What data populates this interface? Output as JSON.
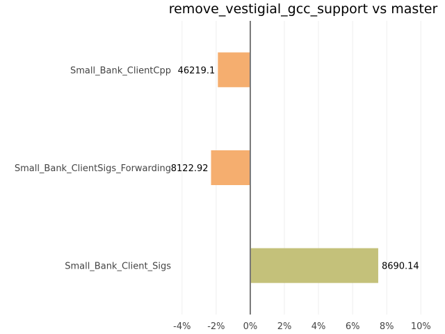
{
  "chart_data": {
    "type": "bar",
    "orientation": "horizontal",
    "title": "remove_vestigial_gcc_support vs master",
    "xlabel": "",
    "ylabel": "",
    "categories": [
      "Small_Bank_ClientCpp",
      "Small_Bank_ClientSigs_Forwarding",
      "Small_Bank_Client_Sigs"
    ],
    "values": [
      -1.9,
      -2.3,
      7.5
    ],
    "data_labels": [
      "46219.1",
      "8122.92",
      "8690.14"
    ],
    "colors": [
      "#f5ae6f",
      "#f5ae6f",
      "#c4c17a"
    ],
    "xlim": [
      -4.4,
      10.6
    ],
    "xticks": [
      -4,
      -2,
      0,
      2,
      4,
      6,
      8,
      10
    ],
    "xtick_labels": [
      "-4%",
      "-2%",
      "0%",
      "2%",
      "4%",
      "6%",
      "8%",
      "10%"
    ],
    "grid": true,
    "legend": "none"
  }
}
